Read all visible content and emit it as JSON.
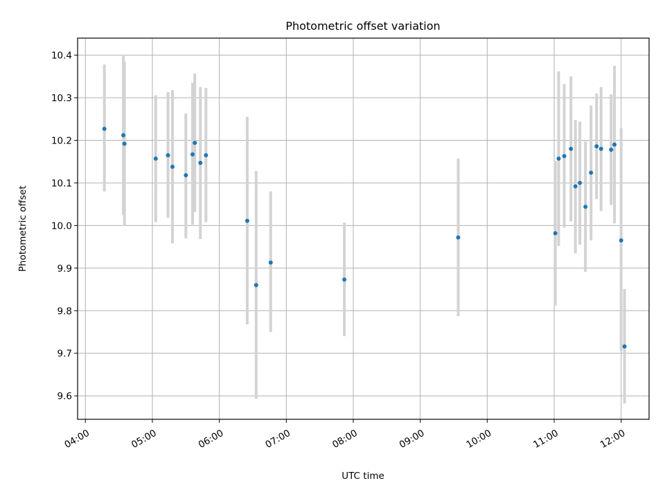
{
  "chart_data": {
    "type": "scatter",
    "title": "Photometric offset variation",
    "xlabel": "UTC time",
    "ylabel": "Photometric offset",
    "x_is_time": true,
    "xlim": [
      "03:53",
      "12:25"
    ],
    "ylim": [
      9.545,
      10.44
    ],
    "grid": true,
    "xticks": [
      "04:00",
      "05:00",
      "06:00",
      "07:00",
      "08:00",
      "09:00",
      "10:00",
      "11:00",
      "12:00"
    ],
    "yticks": [
      "9.6",
      "9.7",
      "9.8",
      "9.9",
      "10.0",
      "10.1",
      "10.2",
      "10.3",
      "10.4"
    ],
    "marker_color": "#1f77b4",
    "errorbar_color": "#d3d3d3",
    "points": [
      {
        "time": "04:17",
        "y": 10.227,
        "err_low": 10.08,
        "err_high": 10.378
      },
      {
        "time": "04:34",
        "y": 10.212,
        "err_low": 10.025,
        "err_high": 10.398
      },
      {
        "time": "04:35",
        "y": 10.192,
        "err_low": 10.0,
        "err_high": 10.385
      },
      {
        "time": "05:03",
        "y": 10.157,
        "err_low": 10.008,
        "err_high": 10.306
      },
      {
        "time": "05:14",
        "y": 10.165,
        "err_low": 10.018,
        "err_high": 10.313
      },
      {
        "time": "05:18",
        "y": 10.138,
        "err_low": 9.958,
        "err_high": 10.318
      },
      {
        "time": "05:30",
        "y": 10.118,
        "err_low": 9.97,
        "err_high": 10.263
      },
      {
        "time": "05:36",
        "y": 10.167,
        "err_low": 10.002,
        "err_high": 10.335
      },
      {
        "time": "05:38",
        "y": 10.194,
        "err_low": 10.032,
        "err_high": 10.357
      },
      {
        "time": "05:43",
        "y": 10.147,
        "err_low": 9.968,
        "err_high": 10.325
      },
      {
        "time": "05:48",
        "y": 10.165,
        "err_low": 10.008,
        "err_high": 10.323
      },
      {
        "time": "06:25",
        "y": 10.011,
        "err_low": 9.768,
        "err_high": 10.255
      },
      {
        "time": "06:33",
        "y": 9.86,
        "err_low": 9.593,
        "err_high": 10.128
      },
      {
        "time": "06:46",
        "y": 9.913,
        "err_low": 9.75,
        "err_high": 10.08
      },
      {
        "time": "07:52",
        "y": 9.873,
        "err_low": 9.74,
        "err_high": 10.007
      },
      {
        "time": "09:34",
        "y": 9.972,
        "err_low": 9.787,
        "err_high": 10.157
      },
      {
        "time": "11:01",
        "y": 9.982,
        "err_low": 9.812,
        "err_high": 10.152
      },
      {
        "time": "11:04",
        "y": 10.157,
        "err_low": 9.952,
        "err_high": 10.362
      },
      {
        "time": "11:09",
        "y": 10.163,
        "err_low": 9.995,
        "err_high": 10.332
      },
      {
        "time": "11:15",
        "y": 10.18,
        "err_low": 10.01,
        "err_high": 10.35
      },
      {
        "time": "11:19",
        "y": 10.092,
        "err_low": 9.935,
        "err_high": 10.248
      },
      {
        "time": "11:23",
        "y": 10.1,
        "err_low": 9.955,
        "err_high": 10.244
      },
      {
        "time": "11:28",
        "y": 10.044,
        "err_low": 9.891,
        "err_high": 10.198
      },
      {
        "time": "11:33",
        "y": 10.124,
        "err_low": 9.965,
        "err_high": 10.282
      },
      {
        "time": "11:38",
        "y": 10.186,
        "err_low": 10.062,
        "err_high": 10.31
      },
      {
        "time": "11:42",
        "y": 10.18,
        "err_low": 10.034,
        "err_high": 10.325
      },
      {
        "time": "11:51",
        "y": 10.178,
        "err_low": 10.048,
        "err_high": 10.308
      },
      {
        "time": "11:54",
        "y": 10.19,
        "err_low": 10.005,
        "err_high": 10.375
      },
      {
        "time": "12:00",
        "y": 9.965,
        "err_low": 9.705,
        "err_high": 10.228
      },
      {
        "time": "12:03",
        "y": 9.716,
        "err_low": 9.582,
        "err_high": 9.851
      }
    ]
  }
}
